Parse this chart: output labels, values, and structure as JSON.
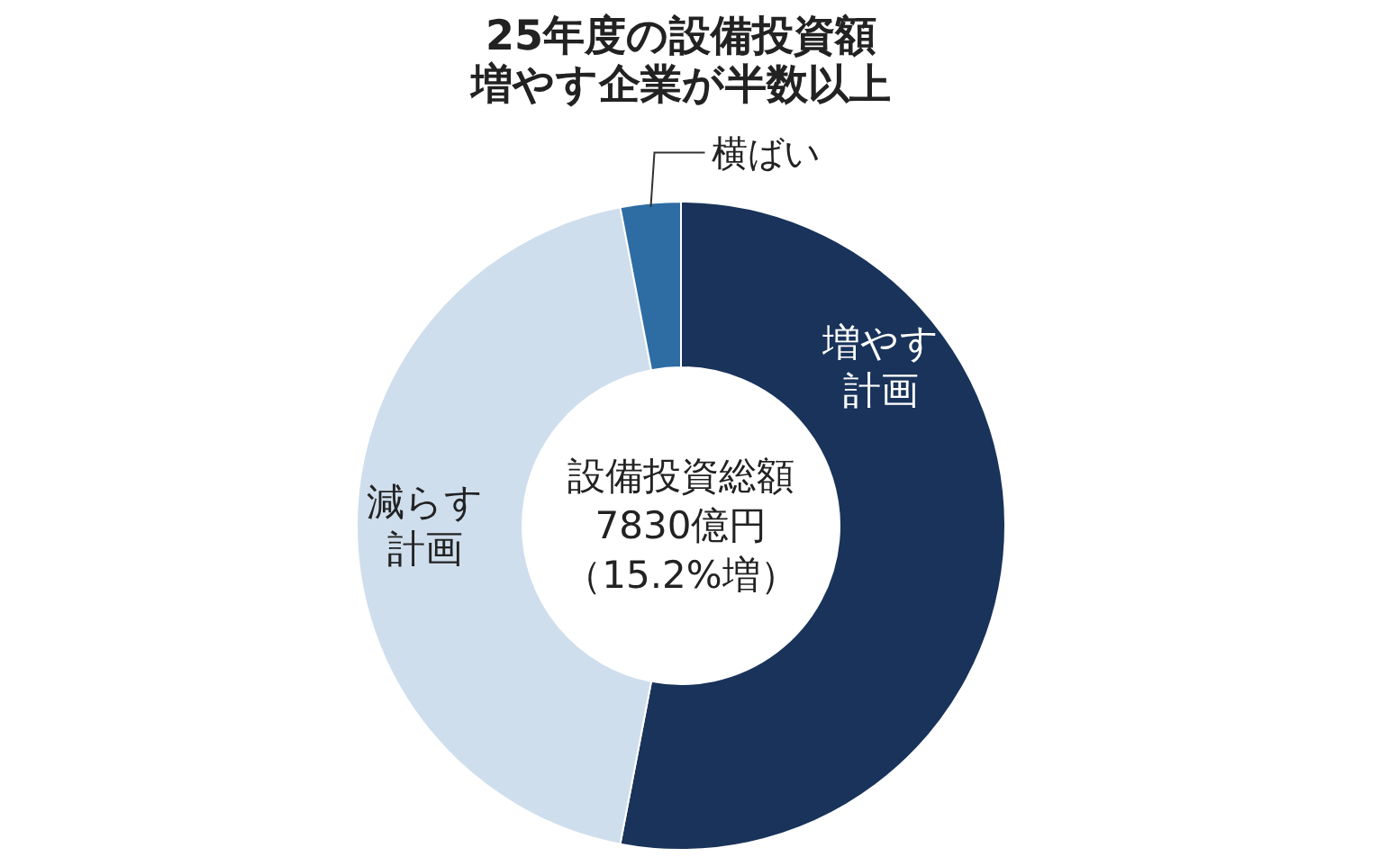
{
  "chart_data": {
    "type": "donut",
    "title": "25年度の設備投資額増やす企業が半数以上",
    "categories": [
      "増やす計画",
      "減らす計画",
      "横ばい"
    ],
    "values": [
      53,
      44,
      3
    ],
    "colors": [
      "#19335a",
      "#cfdeed",
      "#2e6ca4"
    ],
    "annotations": [
      "設備投資総額7830億円（15.2%増）"
    ]
  }
}
